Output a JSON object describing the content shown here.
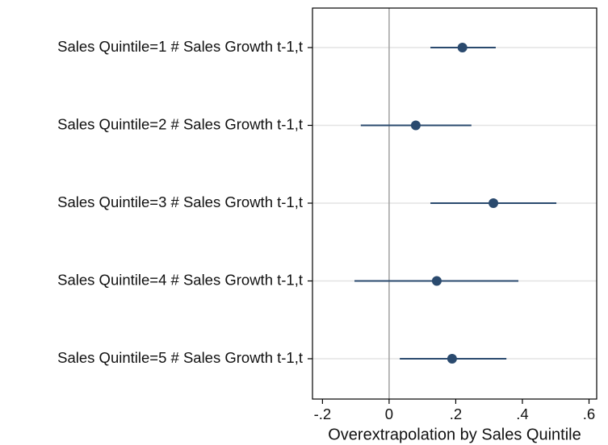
{
  "chart_data": {
    "type": "coefplot",
    "x_label": "Overextrapolation by Sales Quintile",
    "categories": [
      "Sales Quintile=1 # Sales Growth t-1,t",
      "Sales Quintile=2 # Sales Growth t-1,t",
      "Sales Quintile=3 # Sales Growth t-1,t",
      "Sales Quintile=4 # Sales Growth t-1,t",
      "Sales Quintile=5 # Sales Growth t-1,t"
    ],
    "series": [
      {
        "color": "#2a4a6e",
        "values": [
          0.22,
          0.08,
          0.313,
          0.143,
          0.189
        ],
        "lower": [
          0.124,
          -0.085,
          0.124,
          -0.104,
          0.032
        ],
        "upper": [
          0.32,
          0.247,
          0.502,
          0.388,
          0.352
        ]
      }
    ],
    "xlim": [
      -0.23,
      0.623
    ],
    "xticks": [
      {
        "value": -0.2,
        "label": "-.2"
      },
      0,
      {
        "value": 0.2,
        "label": ".2"
      },
      {
        "value": 0.4,
        "label": ".4"
      },
      {
        "value": 0.6,
        "label": ".6"
      }
    ],
    "reference_line": 0,
    "grid": true
  }
}
